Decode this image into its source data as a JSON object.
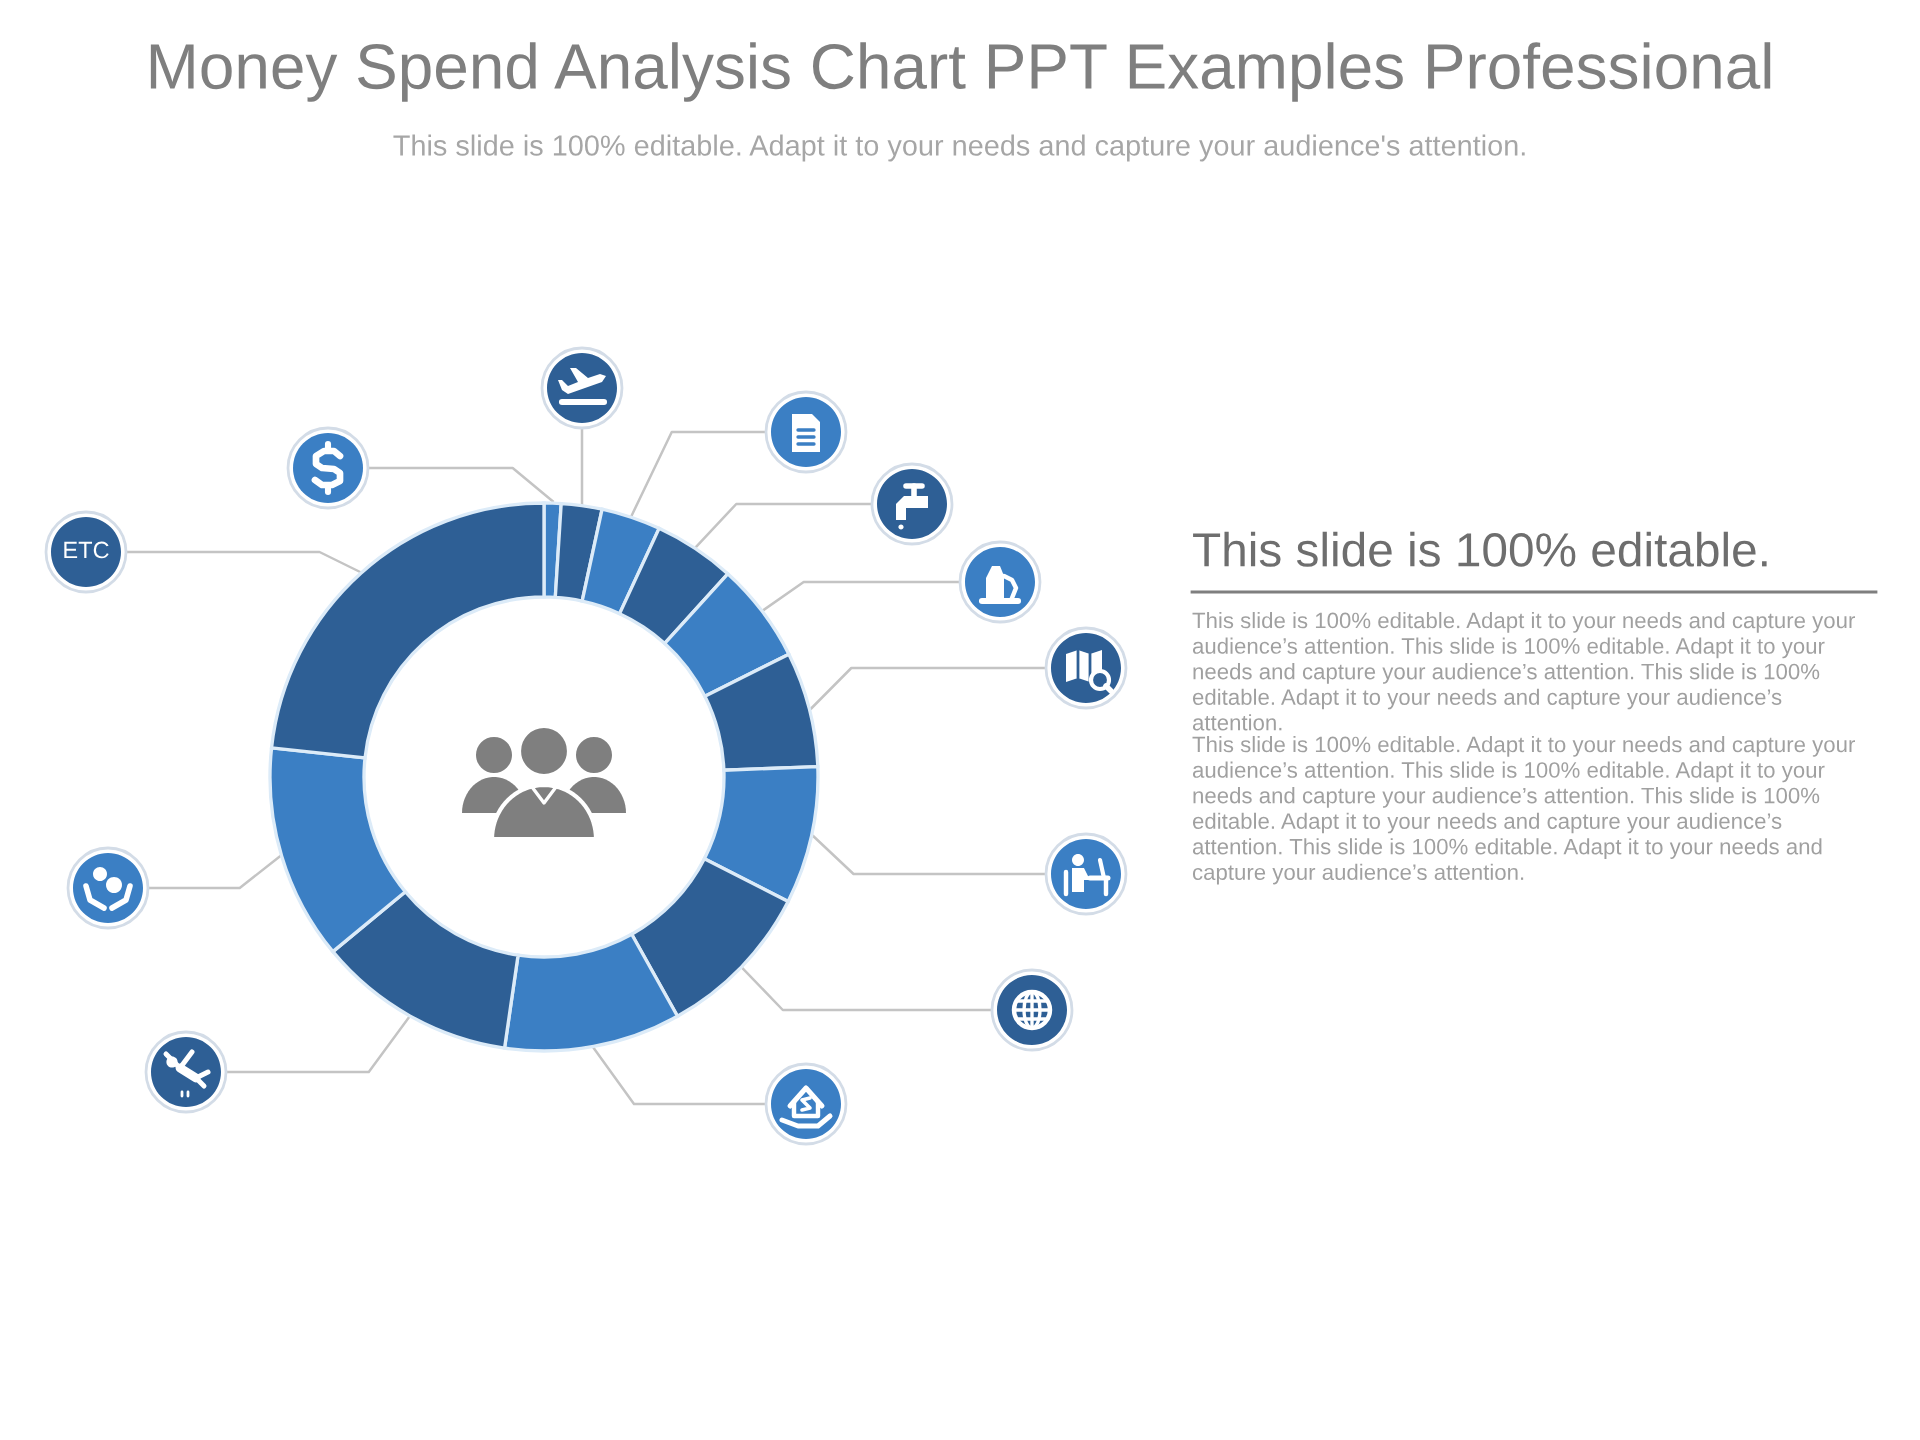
{
  "chart_data": [
    {
      "type": "donut",
      "title": "Money Spend Analysis Chart PPT Examples Professional",
      "subtitle": "This slide is 100% editable. Adapt it to your needs and capture your audience's attention.",
      "categories": [
        null,
        null,
        null,
        null,
        null,
        null,
        null,
        null,
        null,
        null,
        null,
        "ETC"
      ],
      "values": [
        1,
        2.4,
        3.5,
        4.8,
        5.9,
        6.8,
        8.1,
        9.4,
        10.4,
        11.7,
        12.7,
        23.3
      ],
      "colors": [
        "#3b7fc4",
        "#2e5f95",
        "#3b7fc4",
        "#2e5f95",
        "#3b7fc4",
        "#2e5f95",
        "#3b7fc4",
        "#2e5f95",
        "#3b7fc4",
        "#2e5f95",
        "#3b7fc4",
        "#2e5f95"
      ]
    },
    {
      "type": "other",
      "title": "This slide is 100% editable.",
      "annotations": [
        "This slide is 100% editable. Adapt it to your needs and capture your audience’s attention. This slide is 100% editable. Adapt it to your needs and capture your audience’s attention. This slide is 100% editable. Adapt it to your needs and capture your audience’s attention.",
        "This slide is 100% editable. Adapt it to your needs and capture your audience’s attention. This slide is 100% editable. Adapt it to your needs and capture your audience’s attention. This slide is 100% editable. Adapt it to your needs and capture your audience’s attention. This slide is 100% editable. Adapt it to your needs and capture your audience’s attention."
      ]
    }
  ]
}
